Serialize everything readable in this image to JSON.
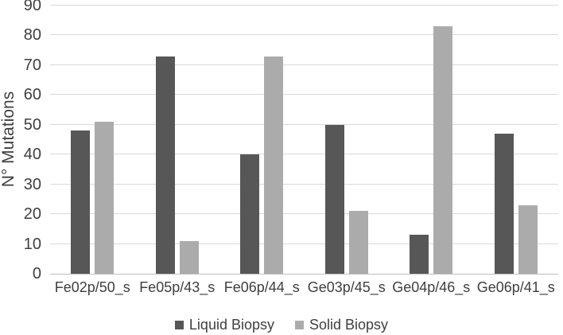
{
  "figure": {
    "background": "#ffffff",
    "text_color": "#3f3f3f",
    "gridline_color": "#d9d9d9",
    "axis_line_color": "#bfbfbf"
  },
  "chart_data": {
    "type": "bar",
    "title": "",
    "xlabel": "",
    "ylabel": "N° Mutations",
    "categories": [
      "Fe02p/50_s",
      "Fe05p/43_s",
      "Fe06p/44_s",
      "Ge03p/45_s",
      "Ge04p/46_s",
      "Ge06p/41_s"
    ],
    "series": [
      {
        "name": "Liquid Biopsy",
        "color": "#575757",
        "values": [
          48,
          73,
          40,
          50,
          13,
          47
        ]
      },
      {
        "name": "Solid Biopsy",
        "color": "#ababab",
        "values": [
          51,
          11,
          73,
          21,
          83,
          23
        ]
      }
    ],
    "ylim": [
      0,
      90
    ],
    "ytick_step": 10,
    "yticks": [
      0,
      10,
      20,
      30,
      40,
      50,
      60,
      70,
      80,
      90
    ],
    "grid": true,
    "legend_position": "bottom"
  }
}
